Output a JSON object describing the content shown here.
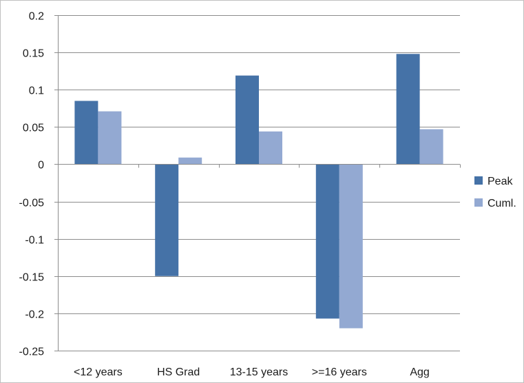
{
  "chart_data": {
    "type": "bar",
    "categories": [
      "<12 years",
      "HS Grad",
      "13-15 years",
      ">=16 years",
      "Agg"
    ],
    "series": [
      {
        "name": "Peak",
        "color": "#4572a7",
        "values": [
          0.085,
          -0.15,
          0.119,
          -0.207,
          0.148
        ]
      },
      {
        "name": "Cuml.",
        "color": "#93a9d2",
        "values": [
          0.071,
          0.009,
          0.044,
          -0.22,
          0.047
        ]
      }
    ],
    "ylim": [
      -0.25,
      0.2
    ],
    "yticks": [
      0.2,
      0.15,
      0.1,
      0.05,
      0,
      -0.05,
      -0.1,
      -0.15,
      -0.2,
      -0.25
    ],
    "ytick_labels": [
      "0.2",
      "0.15",
      "0.1",
      "0.05",
      "0",
      "-0.05",
      "-0.1",
      "-0.15",
      "-0.2",
      "-0.25"
    ],
    "grid": true,
    "legend_position": "right",
    "title": "",
    "xlabel": "",
    "ylabel": ""
  }
}
